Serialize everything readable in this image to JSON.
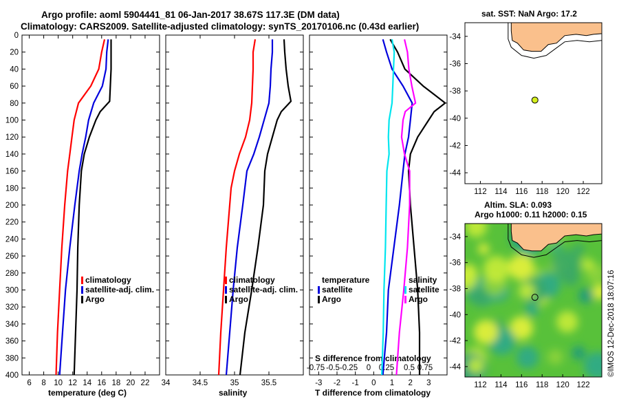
{
  "title_line1": "Argo profile: aoml 5904441_81 06-Jan-2017 38.67S 117.3E (DM data)",
  "title_line2": "Climatology: CARS2009. Satellite-adjusted climatology: synTS_20170106.nc (0.43d earlier)",
  "credit": "©IMOS 12-Dec-2018 18:07:16",
  "colors": {
    "red": "#ff0000",
    "blue": "#0000dd",
    "black": "#000000",
    "cyan": "#00e5ee",
    "magenta": "#ff00ff",
    "land": "#fac08c",
    "marker": "#d4ee1e"
  },
  "chart_data": [
    {
      "type": "line",
      "xlabel": "temperature (deg C)",
      "ylabel": "",
      "xlim": [
        5,
        24
      ],
      "ylim": [
        400,
        0
      ],
      "xticks": [
        "6",
        "8",
        "10",
        "12",
        "14",
        "16",
        "18",
        "20",
        "22"
      ],
      "yticks": [
        "0",
        "20",
        "40",
        "60",
        "80",
        "100",
        "120",
        "140",
        "160",
        "180",
        "200",
        "220",
        "240",
        "260",
        "280",
        "300",
        "320",
        "340",
        "360",
        "380",
        "400"
      ],
      "legend": [
        "climatology",
        "satellite-adj. clim.",
        "Argo"
      ],
      "series": [
        {
          "name": "climatology",
          "color": "red",
          "depth": [
            5,
            20,
            40,
            60,
            80,
            100,
            120,
            140,
            160,
            180,
            200,
            250,
            300,
            350,
            400
          ],
          "values": [
            16.4,
            16.0,
            15.6,
            14.5,
            12.8,
            12.2,
            11.9,
            11.6,
            11.3,
            11.1,
            10.9,
            10.5,
            10.2,
            9.9,
            9.7
          ]
        },
        {
          "name": "satellite-adj. clim.",
          "color": "blue",
          "depth": [
            5,
            20,
            40,
            60,
            80,
            100,
            120,
            140,
            160,
            180,
            200,
            250,
            300,
            350,
            400
          ],
          "values": [
            16.9,
            16.7,
            16.6,
            16.1,
            14.9,
            14.2,
            13.8,
            13.3,
            12.9,
            12.6,
            12.3,
            11.6,
            11.0,
            10.6,
            10.2
          ]
        },
        {
          "name": "Argo",
          "color": "black",
          "depth": [
            5,
            20,
            40,
            60,
            78,
            90,
            100,
            120,
            140,
            160,
            200,
            250,
            300,
            350,
            400
          ],
          "values": [
            17.3,
            17.3,
            17.3,
            17.2,
            17.1,
            15.8,
            15.2,
            14.3,
            13.6,
            13.2,
            12.9,
            12.7,
            12.6,
            12.4,
            12.2
          ]
        }
      ]
    },
    {
      "type": "line",
      "xlabel": "salinity",
      "ylabel": "",
      "xlim": [
        34.0,
        36.0
      ],
      "ylim": [
        400,
        0
      ],
      "xticks": [
        "34",
        "34.5",
        "35",
        "35.5"
      ],
      "legend": [
        "climatology",
        "satellite-adj. clim.",
        "Argo"
      ],
      "series": [
        {
          "name": "climatology",
          "color": "red",
          "depth": [
            5,
            20,
            40,
            60,
            80,
            100,
            120,
            140,
            160,
            180,
            200,
            250,
            300,
            350,
            400
          ],
          "values": [
            35.3,
            35.27,
            35.27,
            35.26,
            35.25,
            35.22,
            35.16,
            35.07,
            35.0,
            34.95,
            34.93,
            34.88,
            34.84,
            34.8,
            34.77
          ]
        },
        {
          "name": "satellite-adj. clim.",
          "color": "blue",
          "depth": [
            5,
            20,
            40,
            60,
            80,
            100,
            120,
            140,
            160,
            180,
            200,
            250,
            300,
            350,
            400
          ],
          "values": [
            35.55,
            35.55,
            35.53,
            35.52,
            35.5,
            35.43,
            35.36,
            35.28,
            35.18,
            35.15,
            35.12,
            35.04,
            34.98,
            34.93,
            34.88
          ]
        },
        {
          "name": "Argo",
          "color": "black",
          "depth": [
            5,
            20,
            40,
            60,
            78,
            90,
            100,
            120,
            140,
            160,
            200,
            250,
            300,
            350,
            400
          ],
          "values": [
            35.72,
            35.73,
            35.75,
            35.78,
            35.82,
            35.68,
            35.62,
            35.55,
            35.48,
            35.44,
            35.42,
            35.34,
            35.25,
            35.15,
            35.08
          ]
        }
      ]
    },
    {
      "type": "line",
      "xlabel": "T difference from climatology",
      "xlabel2": "S difference from climatology",
      "xlim": [
        -3.5,
        4.0
      ],
      "ylim": [
        400,
        0
      ],
      "xticks": [
        "-3",
        "-2",
        "-1",
        "0",
        "1",
        "2",
        "3"
      ],
      "xticks2": [
        "-0.75",
        "-0.5",
        "-0.25",
        "0",
        "0.25",
        "0.5",
        "0.75"
      ],
      "legend_temperature": [
        "temperature",
        "satellite",
        "Argo"
      ],
      "legend_salinity": [
        "salinity",
        "satellite",
        "Argo"
      ],
      "series": [
        {
          "name": "T satellite",
          "color": "blue",
          "depth": [
            5,
            20,
            40,
            60,
            80,
            100,
            120,
            140,
            160,
            200,
            250,
            300,
            350,
            400
          ],
          "values": [
            0.5,
            0.7,
            1.0,
            1.6,
            2.1,
            2.0,
            1.9,
            1.7,
            1.6,
            1.4,
            1.1,
            0.8,
            0.7,
            0.5
          ]
        },
        {
          "name": "T Argo",
          "color": "black",
          "depth": [
            5,
            20,
            40,
            60,
            70,
            80,
            90,
            100,
            120,
            140,
            160,
            200,
            250,
            300,
            350,
            400
          ],
          "values": [
            0.9,
            1.3,
            1.7,
            2.7,
            3.3,
            3.9,
            3.3,
            3.0,
            2.4,
            2.0,
            1.9,
            2.0,
            2.2,
            2.4,
            2.5,
            2.5
          ]
        },
        {
          "name": "S satellite",
          "color": "cyan",
          "depth": [
            5,
            20,
            40,
            60,
            80,
            100,
            120,
            140,
            160,
            200,
            250,
            300,
            350,
            400
          ],
          "values": [
            0.25,
            0.28,
            0.27,
            0.26,
            0.25,
            0.21,
            0.2,
            0.21,
            0.18,
            0.17,
            0.16,
            0.14,
            0.13,
            0.11
          ]
        },
        {
          "name": "S Argo",
          "color": "magenta",
          "depth": [
            5,
            20,
            40,
            60,
            80,
            90,
            100,
            120,
            140,
            160,
            200,
            250,
            300,
            350,
            400
          ],
          "values": [
            0.42,
            0.46,
            0.48,
            0.52,
            0.57,
            0.43,
            0.4,
            0.38,
            0.42,
            0.49,
            0.49,
            0.46,
            0.41,
            0.35,
            0.31
          ]
        }
      ]
    }
  ],
  "map1": {
    "title": "sat. SST: NaN Argo: 17.2",
    "xticks": [
      "112",
      "114",
      "116",
      "118",
      "120",
      "122"
    ],
    "yticks": [
      "-34",
      "-36",
      "-38",
      "-40",
      "-42",
      "-44"
    ],
    "argo_position": {
      "lon": 117.3,
      "lat": -38.67
    }
  },
  "map2": {
    "title_line1": "Altim. SLA: 0.093",
    "title_line2": "Argo h1000: 0.11 h2000: 0.15",
    "xticks": [
      "112",
      "114",
      "116",
      "118",
      "120",
      "122"
    ],
    "yticks": [
      "-34",
      "-36",
      "-38",
      "-40",
      "-42",
      "-44"
    ],
    "argo_position": {
      "lon": 117.3,
      "lat": -38.67
    }
  }
}
